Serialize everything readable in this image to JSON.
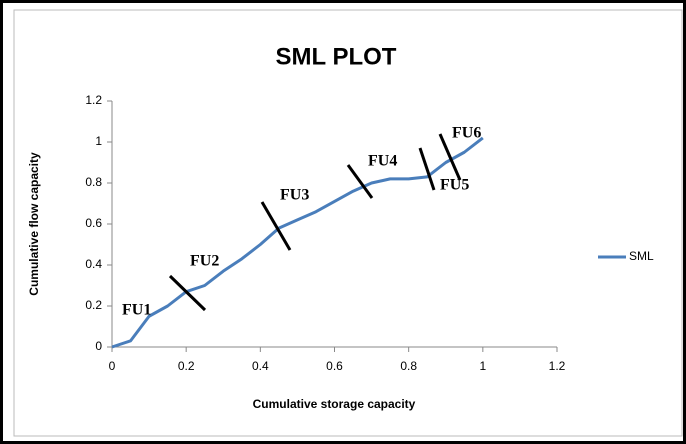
{
  "chart_data": {
    "type": "line",
    "title": "SML PLOT",
    "x_label": "Cumulative storage capacity",
    "y_label": "Cumulative flow capacity",
    "x": [
      0,
      0.05,
      0.1,
      0.15,
      0.2,
      0.25,
      0.3,
      0.35,
      0.4,
      0.45,
      0.5,
      0.55,
      0.6,
      0.65,
      0.7,
      0.75,
      0.8,
      0.85,
      0.9,
      0.95,
      1
    ],
    "series": [
      {
        "name": "SML",
        "color": "#4a7ebb",
        "values": [
          0,
          0.03,
          0.15,
          0.2,
          0.27,
          0.3,
          0.37,
          0.43,
          0.5,
          0.58,
          0.62,
          0.66,
          0.71,
          0.76,
          0.8,
          0.82,
          0.82,
          0.83,
          0.9,
          0.95,
          1.02
        ]
      }
    ],
    "xlim": [
      0,
      1.2
    ],
    "xticks": [
      0,
      0.2,
      0.4,
      0.6,
      0.8,
      1,
      1.2
    ],
    "ylim": [
      0,
      1.2
    ],
    "yticks": [
      0,
      0.2,
      0.4,
      0.6,
      0.8,
      1,
      1.2
    ],
    "legend": "right",
    "annotations": [
      "FU1",
      "FU2",
      "FU3",
      "FU4",
      "FU5",
      "FU6"
    ]
  }
}
